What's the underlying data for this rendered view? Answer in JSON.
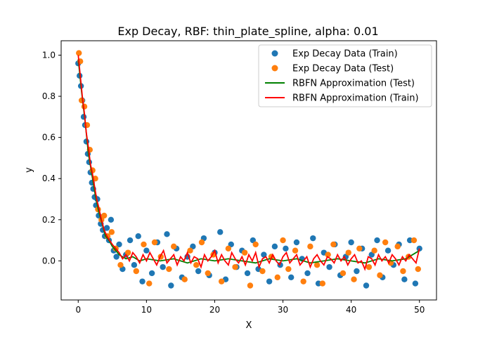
{
  "chart_data": {
    "type": "scatter",
    "title": "Exp Decay, RBF: thin_plate_spline, alpha: 0.01",
    "xlabel": "X",
    "ylabel": "y",
    "xlim": [
      -2.5,
      52.5
    ],
    "ylim": [
      -0.19,
      1.07
    ],
    "x_ticks": [
      0,
      10,
      20,
      30,
      40,
      50
    ],
    "x_tick_labels": [
      "0",
      "10",
      "20",
      "30",
      "40",
      "50"
    ],
    "y_ticks": [
      0.0,
      0.2,
      0.4,
      0.6,
      0.8,
      1.0
    ],
    "y_tick_labels": [
      "0.0",
      "0.2",
      "0.4",
      "0.6",
      "0.8",
      "1.0"
    ],
    "grid": false,
    "legend_position": "top-right",
    "colors": {
      "train": "#1f77b4",
      "test": "#ff7f0e",
      "approx_test": "#008000",
      "approx_train": "#ff0000"
    },
    "series": [
      {
        "name": "Exp Decay Data (Train)",
        "kind": "scatter",
        "color": "#1f77b4",
        "x": [
          0.0,
          0.2,
          0.4,
          0.6,
          0.8,
          1.0,
          1.2,
          1.4,
          1.6,
          1.8,
          2.0,
          2.2,
          2.4,
          2.6,
          2.8,
          3.0,
          3.3,
          3.6,
          3.9,
          4.2,
          4.5,
          4.8,
          5.2,
          5.6,
          6.0,
          6.5,
          7.0,
          7.6,
          8.2,
          8.8,
          9.4,
          10.0,
          10.8,
          11.6,
          12.4,
          13.0,
          13.6,
          14.4,
          15.2,
          16.0,
          16.8,
          17.6,
          18.4,
          19.2,
          20.0,
          20.8,
          21.6,
          22.4,
          23.2,
          24.0,
          24.8,
          25.6,
          26.4,
          27.2,
          28.0,
          28.8,
          29.6,
          30.4,
          31.2,
          32.0,
          32.8,
          33.6,
          34.4,
          35.2,
          36.0,
          36.8,
          37.6,
          38.4,
          39.2,
          40.0,
          40.8,
          41.6,
          42.2,
          43.0,
          43.8,
          44.6,
          45.4,
          46.2,
          47.0,
          47.8,
          48.6,
          49.4,
          50.0
        ],
        "y": [
          0.96,
          0.9,
          0.85,
          0.78,
          0.7,
          0.66,
          0.58,
          0.52,
          0.48,
          0.43,
          0.38,
          0.35,
          0.31,
          0.27,
          0.3,
          0.22,
          0.18,
          0.15,
          0.12,
          0.16,
          0.1,
          0.2,
          0.05,
          0.02,
          0.08,
          -0.04,
          0.03,
          0.1,
          -0.02,
          0.12,
          -0.1,
          0.05,
          -0.06,
          0.09,
          -0.03,
          0.13,
          -0.12,
          0.06,
          -0.08,
          0.02,
          0.07,
          -0.05,
          0.11,
          -0.07,
          0.04,
          0.14,
          -0.09,
          0.08,
          -0.03,
          0.05,
          -0.06,
          0.1,
          -0.04,
          0.03,
          -0.1,
          0.07,
          -0.02,
          0.06,
          -0.08,
          0.09,
          0.01,
          -0.06,
          0.11,
          -0.11,
          0.04,
          -0.03,
          0.08,
          -0.07,
          0.02,
          0.09,
          -0.05,
          0.06,
          -0.12,
          0.03,
          0.1,
          -0.08,
          0.05,
          -0.02,
          0.08,
          -0.09,
          0.1,
          -0.11,
          0.06
        ]
      },
      {
        "name": "Exp Decay Data (Test)",
        "kind": "scatter",
        "color": "#ff7f0e",
        "x": [
          0.1,
          0.3,
          0.5,
          0.9,
          1.3,
          1.7,
          2.1,
          2.5,
          2.9,
          3.4,
          3.8,
          4.3,
          4.9,
          5.5,
          6.2,
          7.3,
          8.5,
          9.6,
          10.4,
          11.2,
          12.1,
          13.3,
          14.0,
          15.6,
          16.4,
          17.3,
          18.1,
          19.0,
          19.8,
          21.0,
          22.0,
          23.0,
          24.4,
          25.2,
          26.0,
          27.0,
          28.3,
          29.2,
          30.0,
          30.8,
          31.8,
          33.0,
          34.0,
          35.0,
          35.8,
          36.6,
          37.4,
          38.8,
          39.6,
          40.4,
          41.2,
          42.6,
          43.4,
          44.2,
          45.0,
          45.8,
          46.8,
          47.6,
          48.4,
          49.2,
          49.8
        ],
        "y": [
          1.01,
          0.97,
          0.78,
          0.75,
          0.66,
          0.54,
          0.44,
          0.4,
          0.25,
          0.2,
          0.22,
          0.12,
          0.14,
          0.06,
          -0.02,
          0.04,
          -0.05,
          0.08,
          -0.11,
          0.09,
          0.02,
          -0.04,
          0.07,
          -0.09,
          0.05,
          -0.02,
          0.09,
          -0.06,
          0.03,
          -0.1,
          0.06,
          -0.03,
          0.04,
          -0.12,
          0.08,
          -0.05,
          0.02,
          -0.08,
          0.1,
          -0.04,
          0.05,
          -0.1,
          0.07,
          -0.02,
          -0.11,
          0.03,
          0.08,
          -0.06,
          0.04,
          -0.09,
          0.06,
          -0.03,
          0.05,
          -0.07,
          0.09,
          -0.01,
          0.07,
          -0.05,
          0.02,
          0.1,
          -0.04
        ]
      },
      {
        "name": "RBFN Approximation (Test)",
        "kind": "line",
        "color": "#008000",
        "x": [
          0.0,
          0.5,
          1.0,
          1.5,
          2.0,
          2.5,
          3.0,
          3.5,
          4.0,
          4.5,
          5.0,
          5.5,
          6.0,
          7.0,
          8.0,
          9.0,
          10.0,
          12.0,
          14.0,
          16.0,
          18.0,
          20.0,
          22.0,
          24.0,
          26.0,
          28.0,
          30.0,
          32.0,
          34.0,
          36.0,
          38.0,
          40.0,
          42.0,
          44.0,
          46.0,
          48.0,
          50.0
        ],
        "y": [
          0.98,
          0.82,
          0.68,
          0.52,
          0.42,
          0.32,
          0.24,
          0.18,
          0.12,
          0.1,
          0.07,
          0.05,
          0.03,
          0.01,
          0.02,
          0.0,
          0.01,
          0.0,
          0.01,
          -0.01,
          0.01,
          0.0,
          0.01,
          0.0,
          -0.01,
          0.01,
          0.0,
          0.01,
          -0.01,
          0.0,
          0.01,
          0.0,
          -0.01,
          0.01,
          0.0,
          0.01,
          0.05
        ]
      },
      {
        "name": "RBFN Approximation (Train)",
        "kind": "line",
        "color": "#ff0000",
        "x": [
          0.0,
          0.3,
          0.6,
          0.9,
          1.2,
          1.5,
          1.8,
          2.1,
          2.4,
          2.7,
          3.0,
          3.4,
          3.8,
          4.2,
          4.6,
          5.0,
          5.5,
          6.0,
          6.5,
          7.0,
          7.5,
          8.0,
          8.5,
          9.0,
          9.5,
          10.0,
          10.5,
          11.0,
          11.5,
          12.0,
          12.5,
          13.0,
          13.5,
          14.0,
          14.5,
          15.0,
          15.5,
          16.0,
          16.5,
          17.0,
          17.5,
          18.0,
          18.5,
          19.0,
          19.5,
          20.0,
          20.5,
          21.0,
          21.5,
          22.0,
          22.5,
          23.0,
          23.5,
          24.0,
          24.5,
          25.0,
          25.5,
          26.0,
          26.5,
          27.0,
          27.5,
          28.0,
          28.5,
          29.0,
          29.5,
          30.0,
          30.5,
          31.0,
          31.5,
          32.0,
          32.5,
          33.0,
          33.5,
          34.0,
          34.5,
          35.0,
          35.5,
          36.0,
          36.5,
          37.0,
          37.5,
          38.0,
          38.5,
          39.0,
          39.5,
          40.0,
          40.5,
          41.0,
          41.5,
          42.0,
          42.5,
          43.0,
          43.5,
          44.0,
          44.5,
          45.0,
          45.5,
          46.0,
          46.5,
          47.0,
          47.5,
          48.0,
          48.5,
          49.0,
          49.5,
          50.0
        ],
        "y": [
          1.0,
          0.9,
          0.8,
          0.72,
          0.62,
          0.55,
          0.47,
          0.42,
          0.36,
          0.3,
          0.26,
          0.2,
          0.15,
          0.12,
          0.1,
          0.08,
          0.06,
          0.04,
          0.01,
          0.03,
          0.0,
          0.04,
          0.02,
          -0.01,
          0.03,
          0.0,
          0.04,
          0.01,
          -0.02,
          0.02,
          0.05,
          -0.01,
          0.01,
          0.03,
          -0.02,
          0.02,
          0.0,
          0.04,
          -0.01,
          0.02,
          0.01,
          -0.03,
          0.03,
          0.0,
          0.02,
          0.05,
          -0.01,
          0.03,
          0.0,
          -0.02,
          0.04,
          0.01,
          -0.01,
          0.02,
          -0.02,
          0.03,
          0.0,
          0.04,
          -0.03,
          0.01,
          0.02,
          -0.01,
          0.03,
          0.0,
          -0.02,
          0.02,
          0.04,
          -0.01,
          0.01,
          0.03,
          -0.02,
          0.0,
          0.02,
          -0.03,
          0.01,
          0.03,
          0.0,
          -0.02,
          0.02,
          0.01,
          -0.01,
          0.03,
          0.0,
          0.02,
          -0.02,
          0.01,
          0.03,
          -0.01,
          0.0,
          -0.04,
          0.02,
          0.01,
          -0.02,
          0.03,
          0.0,
          0.02,
          -0.01,
          0.03,
          0.01,
          -0.02,
          0.02,
          0.0,
          0.03,
          0.01,
          -0.01,
          0.06
        ]
      }
    ]
  }
}
